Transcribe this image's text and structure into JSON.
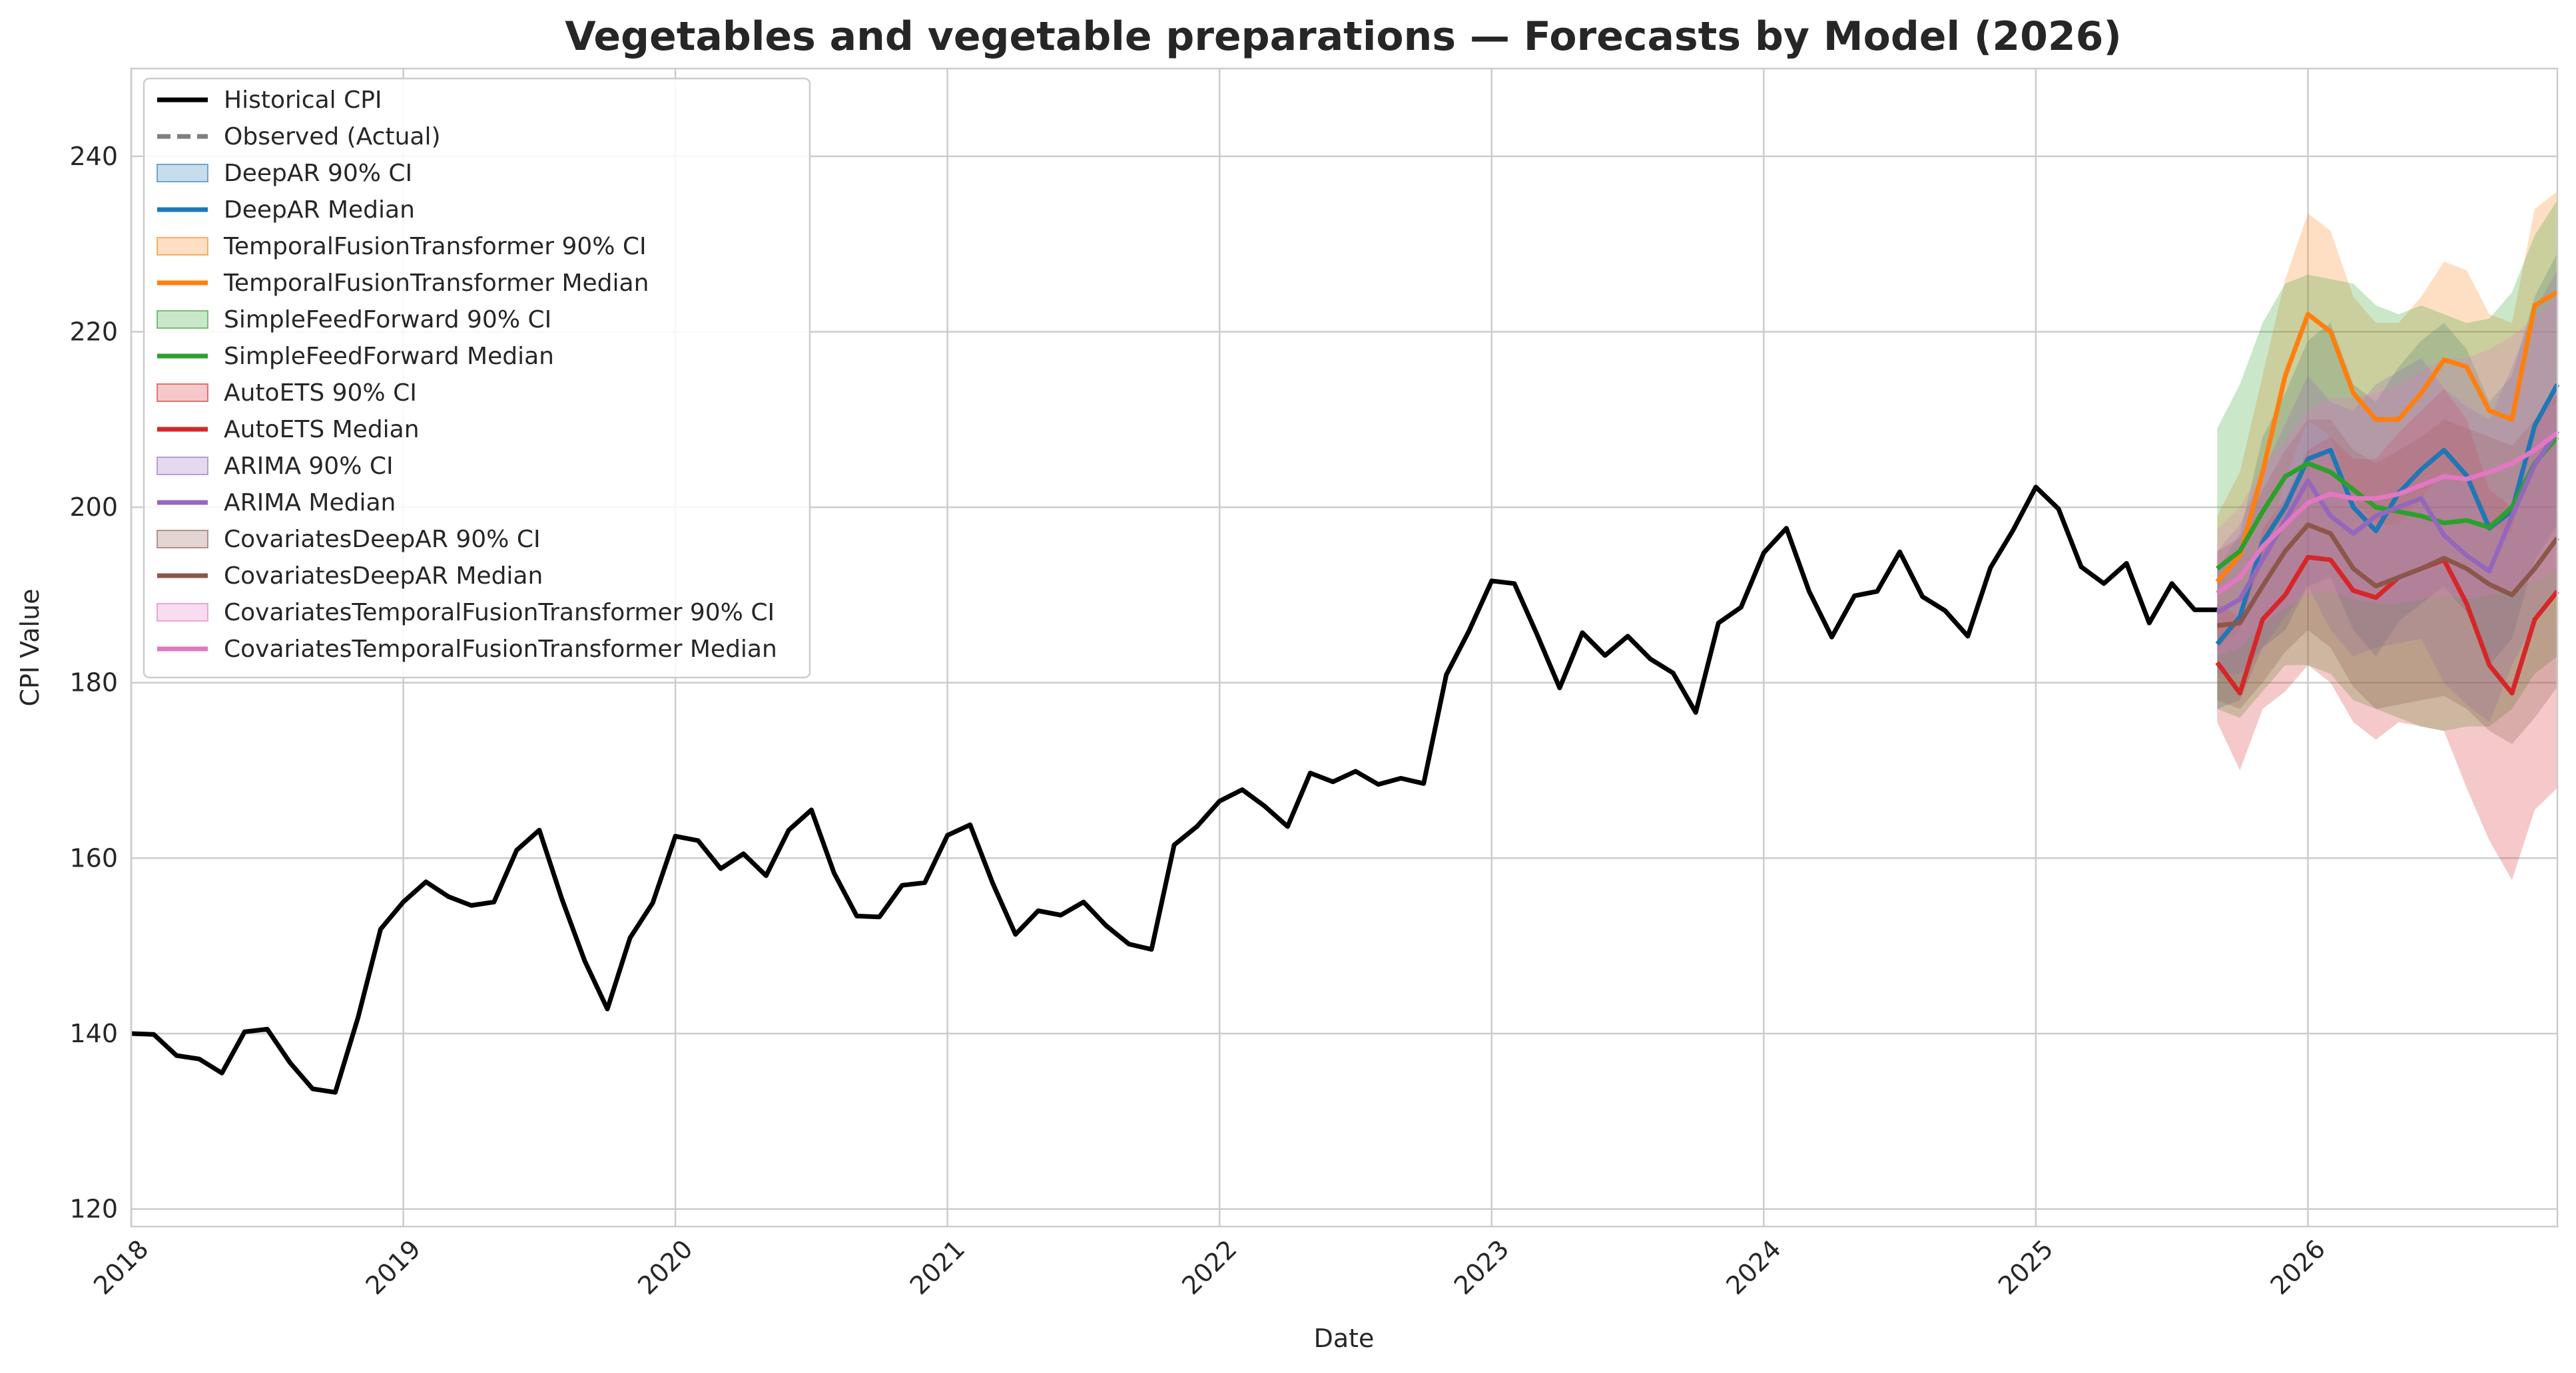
{
  "chart_data": {
    "type": "line",
    "title": "Vegetables and vegetable preparations — Forecasts by Model (2026)",
    "xlabel": "Date",
    "ylabel": "CPI Value",
    "xlim": [
      "2018-01",
      "2026-12"
    ],
    "ylim": [
      118,
      250
    ],
    "y_ticks": [
      120,
      140,
      160,
      180,
      200,
      220,
      240
    ],
    "x_ticks": [
      "2018",
      "2019",
      "2020",
      "2021",
      "2022",
      "2023",
      "2024",
      "2025",
      "2026"
    ],
    "x_tick_dates": [
      "2018-01",
      "2019-01",
      "2020-01",
      "2021-01",
      "2022-01",
      "2023-01",
      "2024-01",
      "2025-01",
      "2026-01"
    ],
    "grid": true,
    "legend_position": "upper-left",
    "historical": {
      "name": "Historical CPI",
      "color": "#000000",
      "start": "2018-01",
      "values": [
        140.0,
        139.9,
        137.5,
        137.1,
        135.5,
        140.2,
        140.5,
        136.7,
        133.7,
        133.3,
        141.8,
        151.9,
        155.0,
        157.3,
        155.6,
        154.6,
        155.0,
        160.9,
        163.2,
        155.3,
        148.3,
        142.8,
        150.9,
        154.9,
        162.5,
        162.0,
        158.8,
        160.5,
        158.0,
        163.2,
        165.5,
        158.3,
        153.4,
        153.3,
        156.9,
        157.2,
        162.6,
        163.8,
        157.1,
        151.3,
        154.0,
        153.5,
        155.0,
        152.3,
        150.2,
        149.6,
        161.5,
        163.6,
        166.5,
        167.8,
        165.9,
        163.6,
        169.7,
        168.7,
        169.9,
        168.4,
        169.1,
        168.5,
        180.9,
        185.9,
        191.6,
        191.3,
        185.5,
        179.4,
        185.7,
        183.1,
        185.3,
        182.7,
        181.1,
        176.6,
        186.8,
        188.6,
        194.8,
        197.6,
        190.4,
        185.2,
        189.9,
        190.4,
        194.9,
        189.8,
        188.2,
        185.3,
        193.1,
        197.4,
        202.3,
        199.8,
        193.2,
        191.3,
        193.6,
        186.8,
        191.3,
        188.3,
        188.3
      ]
    },
    "observed": {
      "name": "Observed (Actual)",
      "color": "#7f7f7f",
      "values": []
    },
    "forecast_dates": [
      "2025-09",
      "2025-10",
      "2025-11",
      "2025-12",
      "2026-01",
      "2026-02",
      "2026-03",
      "2026-04",
      "2026-05",
      "2026-06",
      "2026-07",
      "2026-08",
      "2026-09",
      "2026-10",
      "2026-11",
      "2026-12"
    ],
    "series": [
      {
        "name": "DeepAR",
        "median_label": "DeepAR Median",
        "ci_label": "DeepAR 90% CI",
        "color": "#1f77b4",
        "median": [
          184.4,
          187.5,
          196.0,
          200.0,
          205.5,
          206.5,
          200.0,
          197.3,
          201.6,
          204.3,
          206.5,
          203.6,
          197.6,
          199.6,
          209.3,
          214.0
        ],
        "lower": [
          177.0,
          178.0,
          184.0,
          186.0,
          191.0,
          192.0,
          186.0,
          183.0,
          187.0,
          189.0,
          191.0,
          188.0,
          182.0,
          185.0,
          194.0,
          198.0
        ],
        "upper": [
          193.0,
          197.0,
          208.0,
          213.0,
          219.0,
          221.0,
          214.0,
          212.0,
          216.0,
          219.0,
          221.0,
          218.0,
          212.0,
          215.0,
          224.0,
          229.0
        ]
      },
      {
        "name": "TemporalFusionTransformer",
        "median_label": "TemporalFusionTransformer Median",
        "ci_label": "TemporalFusionTransformer 90% CI",
        "color": "#ff7f0e",
        "median": [
          191.5,
          194.5,
          204.0,
          215.0,
          222.0,
          220.0,
          213.0,
          210.0,
          210.0,
          213.0,
          216.8,
          216.0,
          211.0,
          210.0,
          223.0,
          224.5
        ],
        "lower": [
          184.0,
          186.0,
          194.0,
          203.0,
          210.0,
          208.0,
          201.0,
          198.0,
          198.0,
          201.0,
          204.0,
          203.0,
          198.0,
          197.0,
          210.0,
          212.0
        ],
        "upper": [
          199.0,
          204.0,
          215.0,
          226.0,
          233.5,
          231.5,
          224.0,
          221.0,
          221.0,
          224.0,
          228.0,
          227.0,
          222.0,
          221.0,
          234.0,
          236.0
        ]
      },
      {
        "name": "SimpleFeedForward",
        "median_label": "SimpleFeedForward Median",
        "ci_label": "SimpleFeedForward 90% CI",
        "color": "#2ca02c",
        "median": [
          193.0,
          195.0,
          199.5,
          203.5,
          205.0,
          204.0,
          202.0,
          200.0,
          199.5,
          199.0,
          198.2,
          198.5,
          197.7,
          200.0,
          205.0,
          208.0
        ],
        "lower": [
          177.0,
          176.0,
          179.0,
          182.0,
          182.0,
          181.0,
          178.0,
          177.0,
          176.0,
          175.0,
          174.5,
          175.0,
          175.0,
          177.0,
          181.0,
          183.0
        ],
        "upper": [
          209.0,
          214.0,
          221.0,
          225.5,
          226.5,
          226.0,
          225.5,
          223.0,
          222.0,
          223.0,
          222.0,
          221.0,
          221.5,
          224.5,
          231.0,
          235.0
        ]
      },
      {
        "name": "AutoETS",
        "median_label": "AutoETS Median",
        "ci_label": "AutoETS 90% CI",
        "color": "#d62728",
        "median": [
          182.3,
          178.8,
          187.2,
          190.0,
          194.3,
          194.0,
          190.5,
          189.7,
          192.0,
          193.0,
          194.0,
          189.0,
          182.0,
          178.8,
          187.2,
          190.4
        ],
        "lower": [
          175.5,
          170.0,
          177.0,
          179.0,
          182.0,
          180.0,
          175.5,
          173.5,
          175.5,
          175.0,
          174.5,
          168.0,
          162.0,
          157.5,
          165.5,
          168.0
        ],
        "upper": [
          189.0,
          187.5,
          197.5,
          201.0,
          206.5,
          208.0,
          205.5,
          205.5,
          208.5,
          211.0,
          213.5,
          210.0,
          202.0,
          200.0,
          209.0,
          213.0
        ]
      },
      {
        "name": "ARIMA",
        "median_label": "ARIMA Median",
        "ci_label": "ARIMA 90% CI",
        "color": "#9467bd",
        "median": [
          188.0,
          189.5,
          194.0,
          198.5,
          203.0,
          199.0,
          197.0,
          199.0,
          200.0,
          201.0,
          196.8,
          194.5,
          192.7,
          199.0,
          204.8,
          208.7
        ],
        "lower": [
          181.0,
          181.0,
          184.0,
          187.5,
          191.0,
          186.0,
          183.0,
          184.0,
          184.5,
          185.0,
          180.0,
          177.5,
          175.5,
          182.0,
          187.0,
          190.5
        ],
        "upper": [
          195.0,
          198.0,
          204.0,
          209.5,
          215.0,
          212.0,
          211.0,
          214.0,
          215.5,
          217.0,
          213.5,
          211.5,
          210.0,
          216.0,
          222.5,
          227.0
        ]
      },
      {
        "name": "CovariatesDeepAR",
        "median_label": "CovariatesDeepAR Median",
        "ci_label": "CovariatesDeepAR 90% CI",
        "color": "#8c564b",
        "median": [
          186.5,
          186.8,
          191.0,
          195.0,
          198.0,
          197.0,
          193.0,
          191.0,
          192.0,
          193.0,
          194.2,
          193.0,
          191.2,
          190.0,
          193.0,
          196.5
        ],
        "lower": [
          178.0,
          177.0,
          180.0,
          183.5,
          186.0,
          184.0,
          179.5,
          177.0,
          177.5,
          178.0,
          178.5,
          177.0,
          174.5,
          173.0,
          176.0,
          179.5
        ],
        "upper": [
          195.0,
          196.5,
          202.0,
          206.5,
          210.0,
          210.0,
          206.5,
          205.0,
          206.5,
          208.0,
          210.0,
          209.0,
          208.0,
          207.0,
          210.0,
          213.5
        ]
      },
      {
        "name": "CovariatesTemporalFusionTransformer",
        "median_label": "CovariatesTemporalFusionTransformer Median",
        "ci_label": "CovariatesTemporalFusionTransformer 90% CI",
        "color": "#e377c2",
        "median": [
          190.2,
          192.0,
          195.5,
          198.0,
          200.5,
          201.5,
          201.0,
          201.0,
          201.5,
          202.5,
          203.5,
          203.2,
          204.0,
          205.0,
          206.5,
          208.5
        ],
        "lower": [
          183.0,
          184.0,
          186.5,
          188.5,
          190.0,
          190.5,
          189.5,
          189.0,
          189.0,
          189.5,
          190.0,
          189.5,
          190.0,
          190.5,
          191.5,
          193.0
        ],
        "upper": [
          197.5,
          200.0,
          204.5,
          207.5,
          211.0,
          212.5,
          212.5,
          213.0,
          214.0,
          215.5,
          217.0,
          217.0,
          218.0,
          219.5,
          221.5,
          224.0
        ]
      }
    ]
  }
}
